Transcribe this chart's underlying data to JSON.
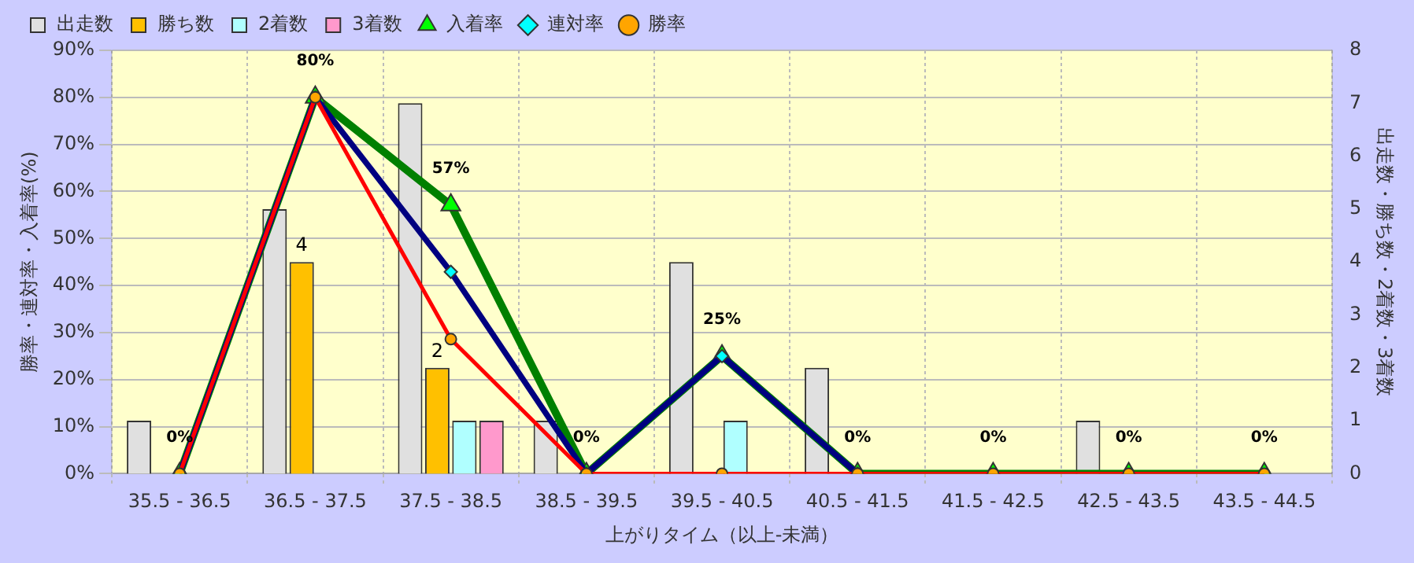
{
  "chart_data": {
    "type": "bar",
    "xlabel": "上がりタイム（以上-未満）",
    "ylabel": "勝率・連対率・入着率(%)",
    "y2label": "出走数・勝ち数・2着数・3着数",
    "categories": [
      "35.5 - 36.5",
      "36.5 - 37.5",
      "37.5 - 38.5",
      "38.5 - 39.5",
      "39.5 - 40.5",
      "40.5 - 41.5",
      "41.5 - 42.5",
      "42.5 - 43.5",
      "43.5 - 44.5"
    ],
    "series": [
      {
        "name": "出走数",
        "axis": "y2",
        "color": "#e0e0e0",
        "values": [
          1,
          5,
          7,
          1,
          4,
          2,
          0,
          1,
          0
        ]
      },
      {
        "name": "勝ち数",
        "axis": "y2",
        "color": "#ffc000",
        "values": [
          0,
          4,
          2,
          0,
          0,
          0,
          0,
          0,
          0
        ],
        "value_labels": [
          null,
          "4",
          "2",
          null,
          null,
          null,
          null,
          null,
          null
        ]
      },
      {
        "name": "2着数",
        "axis": "y2",
        "color": "#b0ffff",
        "values": [
          0,
          0,
          1,
          0,
          1,
          0,
          0,
          0,
          0
        ]
      },
      {
        "name": "3着数",
        "axis": "y2",
        "color": "#ff99cc",
        "values": [
          0,
          0,
          1,
          0,
          0,
          0,
          0,
          0,
          0
        ]
      },
      {
        "name": "入着率",
        "type": "line",
        "color": "#008000",
        "marker": "triangle",
        "values": [
          0,
          80,
          57.1,
          0,
          25,
          0,
          0,
          0,
          0
        ],
        "value_labels": [
          "0%",
          "80%",
          "57%",
          "0%",
          "25%",
          "0%",
          "0%",
          "0%",
          "0%"
        ]
      },
      {
        "name": "連対率",
        "type": "line",
        "color": "#000080",
        "marker": "diamond",
        "values": [
          0,
          80,
          42.9,
          0,
          25,
          0,
          null,
          null,
          null
        ]
      },
      {
        "name": "勝率",
        "type": "line",
        "color": "#ff0000",
        "marker": "circle",
        "values": [
          0,
          80,
          28.6,
          0,
          0,
          0,
          0,
          0,
          0
        ]
      }
    ],
    "ylim": [
      0,
      90
    ],
    "yticks": [
      {
        "value": 0,
        "label": "0%"
      },
      {
        "value": 10,
        "label": "10%"
      },
      {
        "value": 20,
        "label": "20%"
      },
      {
        "value": 30,
        "label": "30%"
      },
      {
        "value": 40,
        "label": "40%"
      },
      {
        "value": 50,
        "label": "50%"
      },
      {
        "value": 60,
        "label": "60%"
      },
      {
        "value": 70,
        "label": "70%"
      },
      {
        "value": 80,
        "label": "80%"
      },
      {
        "value": 90,
        "label": "90%"
      }
    ],
    "y2lim": [
      0,
      8
    ],
    "y2ticks": [
      0,
      1,
      2,
      3,
      4,
      5,
      6,
      7,
      8
    ],
    "grid": true,
    "legend": "top left"
  }
}
